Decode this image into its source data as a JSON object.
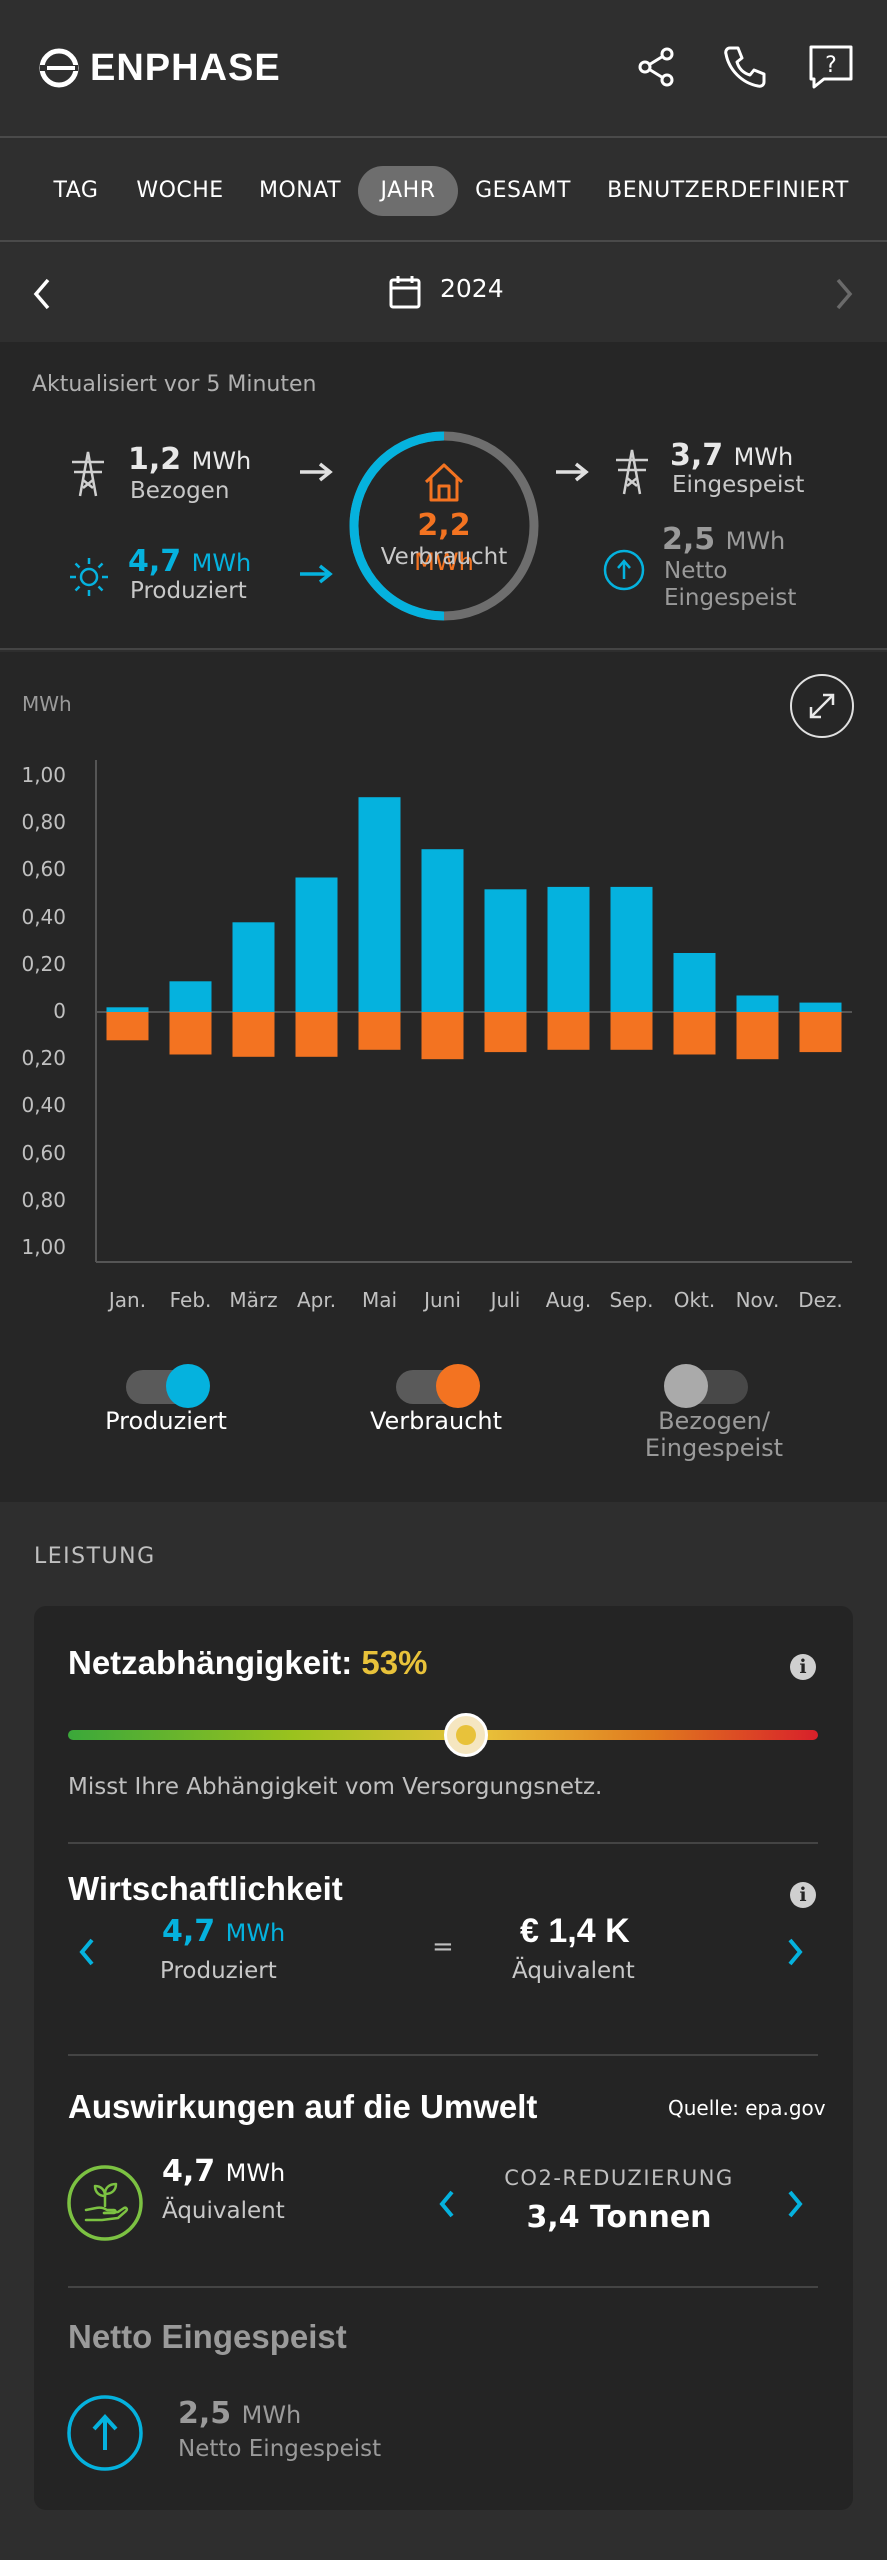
{
  "header": {
    "brand": "ENPHASE",
    "icons": [
      "share-icon",
      "phone-icon",
      "help-icon"
    ]
  },
  "tabs": [
    {
      "label": "TAG",
      "active": false
    },
    {
      "label": "WOCHE",
      "active": false
    },
    {
      "label": "MONAT",
      "active": false
    },
    {
      "label": "JAHR",
      "active": true
    },
    {
      "label": "GESAMT",
      "active": false
    },
    {
      "label": "BENUTZERDEFINIERT",
      "active": false
    }
  ],
  "datebar": {
    "year": "2024"
  },
  "summary": {
    "updated": "Aktualisiert vor 5 Minuten",
    "bezogen": {
      "value": "1,2",
      "unit": "MWh",
      "label": "Bezogen"
    },
    "produziert": {
      "value": "4,7",
      "unit": "MWh",
      "label": "Produziert"
    },
    "verbraucht": {
      "value": "2,2",
      "unit": "MWh",
      "label": "Verbraucht"
    },
    "eingespeist": {
      "value": "3,7",
      "unit": "MWh",
      "label": "Eingespeist"
    },
    "netto": {
      "value": "2,5",
      "unit": "MWh",
      "label1": "Netto",
      "label2": "Eingespeist"
    }
  },
  "chart_data": {
    "type": "bar",
    "ylabel": "MWh",
    "ylim": [
      -1.0,
      1.0
    ],
    "yticks_pos": [
      "1,00",
      "0,80",
      "0,60",
      "0,40",
      "0,20",
      "0"
    ],
    "yticks_neg": [
      "0,20",
      "0,40",
      "0,60",
      "0,80",
      "1,00"
    ],
    "categories": [
      "Jan.",
      "Feb.",
      "März",
      "Apr.",
      "Mai",
      "Juni",
      "Juli",
      "Aug.",
      "Sep.",
      "Okt.",
      "Nov.",
      "Dez."
    ],
    "series": [
      {
        "name": "Produziert",
        "color": "#05b2de",
        "values": [
          0.02,
          0.13,
          0.38,
          0.57,
          0.91,
          0.69,
          0.52,
          0.53,
          0.53,
          0.25,
          0.07,
          0.04
        ]
      },
      {
        "name": "Verbraucht",
        "color": "#f37321",
        "values": [
          -0.12,
          -0.18,
          -0.19,
          -0.19,
          -0.16,
          -0.2,
          -0.17,
          -0.16,
          -0.16,
          -0.18,
          -0.2,
          -0.17
        ]
      }
    ]
  },
  "toggles": [
    {
      "label": "Produziert",
      "on": true,
      "color": "#05b2de"
    },
    {
      "label": "Verbraucht",
      "on": true,
      "color": "#f37321"
    },
    {
      "label1": "Bezogen/",
      "label2": "Eingespeist",
      "on": false,
      "color": "#aaaaaa"
    }
  ],
  "performance": {
    "title": "LEISTUNG",
    "grid": {
      "title": "Netzabhängigkeit:",
      "value": "53%",
      "fraction": 0.53,
      "desc": "Misst Ihre Abhängigkeit vom Versorgungsnetz."
    },
    "economy": {
      "title": "Wirtschaftlichkeit",
      "value": "4,7",
      "unit": "MWh",
      "label": "Produziert",
      "equals": "=",
      "money": "€ 1,4 K",
      "money_label": "Äquivalent"
    },
    "environment": {
      "title": "Auswirkungen auf die Umwelt",
      "source": "Quelle: epa.gov",
      "value": "4,7",
      "unit": "MWh",
      "label": "Äquivalent",
      "co2_title": "CO2-REDUZIERUNG",
      "co2_value": "3,4 Tonnen"
    },
    "net": {
      "title": "Netto Eingespeist",
      "value": "2,5",
      "unit": "MWh",
      "label": "Netto Eingespeist"
    }
  }
}
